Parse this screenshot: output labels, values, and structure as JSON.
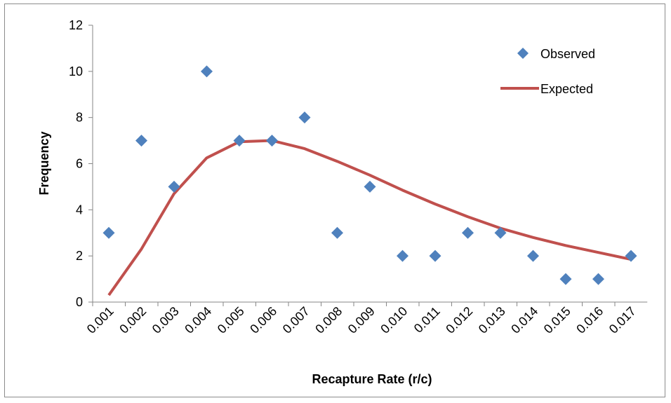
{
  "chart_data": {
    "type": "scatter",
    "title": "",
    "xlabel": "Recapture Rate (r/c)",
    "ylabel": "Frequency",
    "categories": [
      "0.001",
      "0.002",
      "0.003",
      "0.004",
      "0.005",
      "0.006",
      "0.007",
      "0.008",
      "0.009",
      "0.010",
      "0.011",
      "0.012",
      "0.013",
      "0.014",
      "0.015",
      "0.016",
      "0.017"
    ],
    "ylim": [
      0,
      12
    ],
    "yticks": [
      "0",
      "2",
      "4",
      "6",
      "8",
      "10",
      "12"
    ],
    "grid": false,
    "legend_position": "top-right",
    "series": [
      {
        "name": "Observed",
        "kind": "scatter",
        "marker": "diamond",
        "color": "#4f81bd",
        "values": [
          3,
          7,
          5,
          10,
          7,
          7,
          8,
          3,
          5,
          2,
          2,
          3,
          3,
          2,
          1,
          1,
          2
        ]
      },
      {
        "name": "Expected",
        "kind": "line",
        "color": "#c0504d",
        "values": [
          0.3,
          2.3,
          4.7,
          6.25,
          6.95,
          7.0,
          6.65,
          6.1,
          5.5,
          4.85,
          4.25,
          3.7,
          3.2,
          2.8,
          2.45,
          2.15,
          1.85
        ]
      }
    ]
  }
}
